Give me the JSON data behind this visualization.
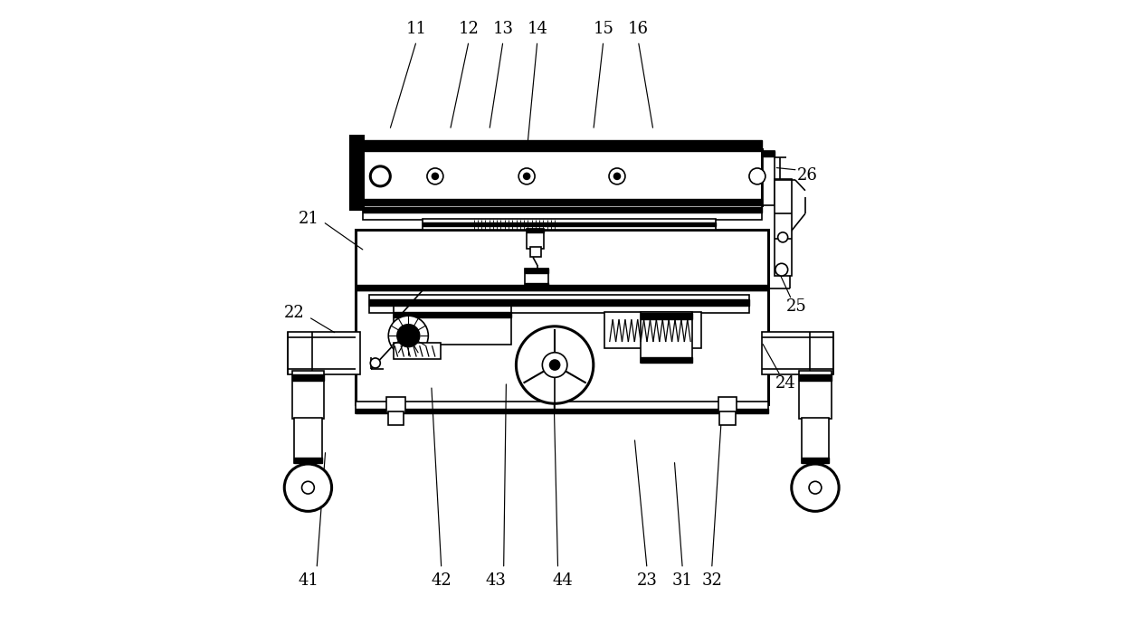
{
  "bg_color": "#ffffff",
  "lc": "#000000",
  "lw": 1.2,
  "tlw": 2.2,
  "fig_w": 12.4,
  "fig_h": 6.9,
  "dpi": 100,
  "annotations": {
    "11": {
      "lp": [
        0.268,
        0.955
      ],
      "ls": [
        0.268,
        0.935
      ],
      "le": [
        0.225,
        0.792
      ]
    },
    "12": {
      "lp": [
        0.352,
        0.955
      ],
      "ls": [
        0.352,
        0.935
      ],
      "le": [
        0.322,
        0.792
      ]
    },
    "13": {
      "lp": [
        0.407,
        0.955
      ],
      "ls": [
        0.407,
        0.935
      ],
      "le": [
        0.385,
        0.792
      ]
    },
    "14": {
      "lp": [
        0.462,
        0.955
      ],
      "ls": [
        0.462,
        0.935
      ],
      "le": [
        0.445,
        0.755
      ]
    },
    "15": {
      "lp": [
        0.568,
        0.955
      ],
      "ls": [
        0.568,
        0.935
      ],
      "le": [
        0.552,
        0.792
      ]
    },
    "16": {
      "lp": [
        0.624,
        0.955
      ],
      "ls": [
        0.624,
        0.935
      ],
      "le": [
        0.648,
        0.792
      ]
    },
    "21": {
      "lp": [
        0.095,
        0.65
      ],
      "ls": [
        0.118,
        0.645
      ],
      "le": [
        0.185,
        0.598
      ]
    },
    "22": {
      "lp": [
        0.072,
        0.498
      ],
      "ls": [
        0.095,
        0.492
      ],
      "le": [
        0.14,
        0.465
      ]
    },
    "23": {
      "lp": [
        0.638,
        0.068
      ],
      "ls": [
        0.638,
        0.088
      ],
      "le": [
        0.618,
        0.298
      ]
    },
    "24": {
      "lp": [
        0.86,
        0.385
      ],
      "ls": [
        0.852,
        0.398
      ],
      "le": [
        0.822,
        0.452
      ]
    },
    "25": {
      "lp": [
        0.878,
        0.508
      ],
      "ls": [
        0.87,
        0.52
      ],
      "le": [
        0.848,
        0.568
      ]
    },
    "26": {
      "lp": [
        0.895,
        0.72
      ],
      "ls": [
        0.88,
        0.728
      ],
      "le": [
        0.842,
        0.732
      ]
    },
    "31": {
      "lp": [
        0.695,
        0.068
      ],
      "ls": [
        0.695,
        0.088
      ],
      "le": [
        0.682,
        0.262
      ]
    },
    "32": {
      "lp": [
        0.742,
        0.068
      ],
      "ls": [
        0.742,
        0.088
      ],
      "le": [
        0.758,
        0.338
      ]
    },
    "41": {
      "lp": [
        0.095,
        0.068
      ],
      "ls": [
        0.108,
        0.088
      ],
      "le": [
        0.122,
        0.278
      ]
    },
    "42": {
      "lp": [
        0.308,
        0.068
      ],
      "ls": [
        0.308,
        0.088
      ],
      "le": [
        0.292,
        0.382
      ]
    },
    "43": {
      "lp": [
        0.395,
        0.068
      ],
      "ls": [
        0.408,
        0.088
      ],
      "le": [
        0.412,
        0.388
      ]
    },
    "44": {
      "lp": [
        0.502,
        0.068
      ],
      "ls": [
        0.495,
        0.088
      ],
      "le": [
        0.488,
        0.388
      ]
    }
  }
}
